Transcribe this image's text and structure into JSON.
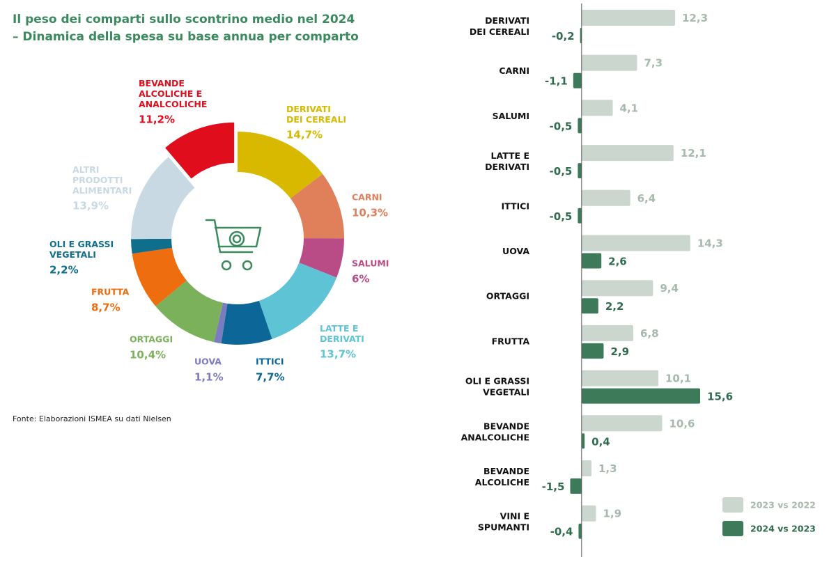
{
  "chart_data": [
    {
      "type": "pie",
      "title": "Il peso dei comparti sullo scontrino medio nel 2024",
      "source": "Fonte: Elaborazioni ISMEA su dati Nielsen",
      "categories": [
        "DERIVATI\nDEI CEREALI",
        "CARNI",
        "SALUMI",
        "LATTE E\nDERIVATI",
        "ITTICI",
        "UOVA",
        "ORTAGGI",
        "FRUTTA",
        "OLI E GRASSI\nVEGETALI",
        "ALTRI\nPRODOTTI\nALIMENTARI",
        "BEVANDE\nALCOLICHE E\nANALCOLICHE"
      ],
      "values": [
        14.7,
        10.3,
        6,
        13.7,
        7.7,
        1.1,
        10.4,
        8.7,
        2.2,
        13.9,
        11.2
      ],
      "value_labels": [
        "14,7%",
        "10,3%",
        "6%",
        "13,7%",
        "7,7%",
        "1,1%",
        "10,4%",
        "8,7%",
        "2,2%",
        "13,9%",
        "11,2%"
      ],
      "colors": [
        "#d8b900",
        "#e0805a",
        "#b94b86",
        "#5ec3d5",
        "#0c6697",
        "#7b7cc0",
        "#7bb15b",
        "#ee6d0e",
        "#0f6e8b",
        "#c9d9e3",
        "#e00d1d"
      ]
    },
    {
      "type": "bar",
      "title": "– Dinamica della spesa su base annua per comparto",
      "orientation": "horizontal",
      "categories": [
        "DERIVATI\nDEI CEREALI",
        "CARNI",
        "SALUMI",
        "LATTE E\nDERIVATI",
        "ITTICI",
        "UOVA",
        "ORTAGGI",
        "FRUTTA",
        "OLI E GRASSI\nVEGETALI",
        "BEVANDE\nANALCOLICHE",
        "BEVANDE\nALCOLICHE",
        "VINI E\nSPUMANTI"
      ],
      "xlim": [
        -2,
        20
      ],
      "series": [
        {
          "name": "2023 vs 2022",
          "color": "#cad6ce",
          "values": [
            12.3,
            7.3,
            4.1,
            12.1,
            6.4,
            14.3,
            9.4,
            6.8,
            10.1,
            10.6,
            1.3,
            1.9
          ],
          "value_labels": [
            "12,3",
            "7,3",
            "4,1",
            "12,1",
            "6,4",
            "14,3",
            "9,4",
            "6,8",
            "10,1",
            "10,6",
            "1,3",
            "1,9"
          ]
        },
        {
          "name": "2024 vs 2023",
          "color": "#3c7a5a",
          "values": [
            -0.2,
            -1.1,
            -0.5,
            -0.5,
            -0.5,
            2.6,
            2.2,
            2.9,
            15.6,
            0.4,
            -1.5,
            -0.4
          ],
          "value_labels": [
            "-0,2",
            "-1,1",
            "-0,5",
            "-0,5",
            "-0,5",
            "2,6",
            "2,2",
            "2,9",
            "15,6",
            "0,4",
            "-1,5",
            "-0,4"
          ]
        }
      ],
      "legend": "bottom-right"
    }
  ]
}
